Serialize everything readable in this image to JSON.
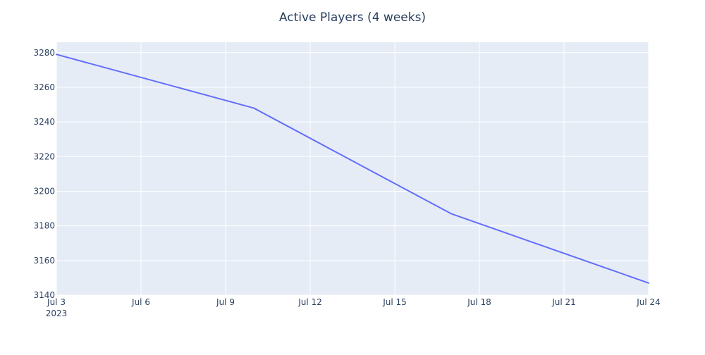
{
  "chart_data": {
    "type": "line",
    "title": "Active Players (4 weeks)",
    "xlabel": "",
    "ylabel": "",
    "x_axis": {
      "type": "date",
      "range": [
        "2023-07-03",
        "2023-07-24"
      ],
      "ticks": [
        {
          "date": "2023-07-03",
          "label": "Jul 3",
          "sublabel": "2023"
        },
        {
          "date": "2023-07-06",
          "label": "Jul 6"
        },
        {
          "date": "2023-07-09",
          "label": "Jul 9"
        },
        {
          "date": "2023-07-12",
          "label": "Jul 12"
        },
        {
          "date": "2023-07-15",
          "label": "Jul 15"
        },
        {
          "date": "2023-07-18",
          "label": "Jul 18"
        },
        {
          "date": "2023-07-21",
          "label": "Jul 21"
        },
        {
          "date": "2023-07-24",
          "label": "Jul 24"
        }
      ]
    },
    "y_axis": {
      "range": [
        3140,
        3286
      ],
      "ticks": [
        3140,
        3160,
        3180,
        3200,
        3220,
        3240,
        3260,
        3280
      ]
    },
    "grid": true,
    "legend": "none",
    "series": [
      {
        "color": "#636efa",
        "points": [
          {
            "x": "2023-07-03",
            "y": 3279
          },
          {
            "x": "2023-07-10",
            "y": 3248
          },
          {
            "x": "2023-07-17",
            "y": 3187
          },
          {
            "x": "2023-07-24",
            "y": 3147
          }
        ]
      }
    ],
    "colors": {
      "plot_background": "#e5ecf6",
      "grid": "#ffffff",
      "text": "#2a3f5f",
      "line": "#636efa"
    }
  }
}
